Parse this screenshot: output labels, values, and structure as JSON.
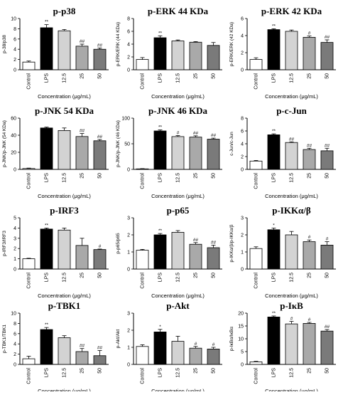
{
  "figure": {
    "xlabel": "Concentration (μg/mL)",
    "categories": [
      "Control",
      "LPS",
      "12.5",
      "25",
      "50"
    ],
    "bar_colors": [
      "#ffffff",
      "#000000",
      "#d3d3d3",
      "#a9a9a9",
      "#7a7a7a"
    ]
  },
  "chart_data": [
    {
      "type": "bar",
      "title": "p-p38",
      "ylabel": "p-38/p38",
      "ylim": [
        0,
        10
      ],
      "yticks": [
        0,
        2,
        4,
        6,
        8,
        10
      ],
      "categories": [
        "Control",
        "LPS",
        "12.5",
        "25",
        "50"
      ],
      "values": [
        1.5,
        8.2,
        7.6,
        4.6,
        4.0
      ],
      "errors": [
        0.2,
        0.6,
        0.25,
        0.4,
        0.25
      ],
      "annotations": [
        "",
        "**",
        "",
        "##",
        "##"
      ]
    },
    {
      "type": "bar",
      "title": "p-ERK 44 KDa",
      "ylabel": "p-ERK/ERK (44 KDa)",
      "ylim": [
        0,
        8
      ],
      "yticks": [
        0,
        2,
        4,
        6,
        8
      ],
      "categories": [
        "Control",
        "LPS",
        "12.5",
        "25",
        "50"
      ],
      "values": [
        1.6,
        5.0,
        4.5,
        4.3,
        3.8
      ],
      "errors": [
        0.3,
        0.3,
        0.15,
        0.1,
        0.45
      ],
      "annotations": [
        "",
        "**",
        "",
        "",
        ""
      ]
    },
    {
      "type": "bar",
      "title": "p-ERK 42 KDa",
      "ylabel": "p-ERK/ERK (42 KDa)",
      "ylim": [
        0,
        6
      ],
      "yticks": [
        0,
        2,
        4,
        6
      ],
      "categories": [
        "Control",
        "LPS",
        "12.5",
        "25",
        "50"
      ],
      "values": [
        1.2,
        4.7,
        4.5,
        3.8,
        3.2
      ],
      "errors": [
        0.2,
        0.1,
        0.15,
        0.15,
        0.3
      ],
      "annotations": [
        "",
        "**",
        "",
        "#",
        "##"
      ]
    },
    {
      "type": "bar",
      "title": "p-JNK 54 KDa",
      "ylabel": "p-JNK/p-JNK (54 KDa)",
      "ylim": [
        0,
        60
      ],
      "yticks": [
        0,
        20,
        40,
        60
      ],
      "categories": [
        "Control",
        "LPS",
        "12.5",
        "25",
        "50"
      ],
      "values": [
        1.0,
        48.5,
        45.5,
        38.5,
        33.5
      ],
      "errors": [
        0.5,
        1.0,
        3.0,
        3.5,
        1.5
      ],
      "annotations": [
        "",
        "",
        "",
        "##",
        "##"
      ]
    },
    {
      "type": "bar",
      "title": "p-JNK 46 KDa",
      "ylabel": "p-JNK/p-JNK (46 KDa)",
      "ylim": [
        0,
        100
      ],
      "yticks": [
        0,
        50,
        100
      ],
      "categories": [
        "Control",
        "LPS",
        "12.5",
        "25",
        "50"
      ],
      "values": [
        1.0,
        75.0,
        64.0,
        63.0,
        59.0
      ],
      "errors": [
        0.5,
        2.0,
        2.0,
        2.5,
        2.0
      ],
      "annotations": [
        "",
        "**",
        "#",
        "##",
        "##"
      ]
    },
    {
      "type": "bar",
      "title": "p-c-Jun",
      "ylabel": "c-Jun/c-Jun",
      "ylim": [
        0,
        8
      ],
      "yticks": [
        0,
        2,
        4,
        6,
        8
      ],
      "categories": [
        "Control",
        "LPS",
        "12.5",
        "25",
        "50"
      ],
      "values": [
        1.3,
        5.4,
        4.2,
        3.1,
        2.9
      ],
      "errors": [
        0.1,
        0.15,
        0.1,
        0.2,
        0.4
      ],
      "annotations": [
        "",
        "**",
        "##",
        "##",
        "##"
      ]
    },
    {
      "type": "bar",
      "title": "p-IRF3",
      "ylabel": "p-IRF3/IRF3",
      "ylim": [
        0,
        5
      ],
      "yticks": [
        0,
        1,
        2,
        3,
        4,
        5
      ],
      "categories": [
        "Control",
        "LPS",
        "12.5",
        "25",
        "50"
      ],
      "values": [
        1.0,
        3.9,
        3.8,
        2.3,
        1.9
      ],
      "errors": [
        0.05,
        0.1,
        0.2,
        0.7,
        0.05
      ],
      "annotations": [
        "",
        "**",
        "",
        "",
        "#"
      ]
    },
    {
      "type": "bar",
      "title": "p-p65",
      "ylabel": "p-p65/p65",
      "ylim": [
        0,
        3
      ],
      "yticks": [
        0,
        1,
        2,
        3
      ],
      "categories": [
        "Control",
        "LPS",
        "12.5",
        "25",
        "50"
      ],
      "values": [
        1.1,
        2.0,
        2.15,
        1.45,
        1.25
      ],
      "errors": [
        0.05,
        0.08,
        0.1,
        0.1,
        0.15
      ],
      "annotations": [
        "",
        "**",
        "",
        "##",
        "##"
      ]
    },
    {
      "type": "bar",
      "title": "p-IKKα/β",
      "ylabel": "p-IKKα/β/p-IKKα/β",
      "ylim": [
        0,
        3
      ],
      "yticks": [
        0,
        1,
        2,
        3
      ],
      "categories": [
        "Control",
        "LPS",
        "12.5",
        "25",
        "50"
      ],
      "values": [
        1.2,
        2.3,
        2.0,
        1.6,
        1.4
      ],
      "errors": [
        0.1,
        0.1,
        0.2,
        0.1,
        0.2
      ],
      "annotations": [
        "",
        "*",
        "",
        "#",
        "#"
      ]
    },
    {
      "type": "bar",
      "title": "p-TBK1",
      "ylabel": "p-TBK1/TBK1",
      "ylim": [
        0,
        10
      ],
      "yticks": [
        0,
        2,
        4,
        6,
        8,
        10
      ],
      "categories": [
        "Control",
        "LPS",
        "12.5",
        "25",
        "50"
      ],
      "values": [
        1.1,
        6.8,
        5.2,
        2.5,
        1.7
      ],
      "errors": [
        0.5,
        0.4,
        0.4,
        0.6,
        1.0
      ],
      "annotations": [
        "",
        "**",
        "",
        "##",
        "##"
      ]
    },
    {
      "type": "bar",
      "title": "p-Akt",
      "ylabel": "p-Akt/Akt",
      "ylim": [
        0,
        3
      ],
      "yticks": [
        0,
        1,
        2,
        3
      ],
      "categories": [
        "Control",
        "LPS",
        "12.5",
        "25",
        "50"
      ],
      "values": [
        1.05,
        1.9,
        1.35,
        0.95,
        0.9
      ],
      "errors": [
        0.1,
        0.15,
        0.3,
        0.1,
        0.1
      ],
      "annotations": [
        "",
        "*",
        "",
        "#",
        "#"
      ]
    },
    {
      "type": "bar",
      "title": "p-IκB",
      "ylabel": "p-IκBα/IκBα",
      "ylim": [
        0,
        20
      ],
      "yticks": [
        0,
        5,
        10,
        15,
        20
      ],
      "categories": [
        "Control",
        "LPS",
        "12.5",
        "25",
        "50"
      ],
      "values": [
        1.0,
        18.5,
        15.8,
        16.0,
        13.0
      ],
      "errors": [
        0.2,
        0.4,
        1.0,
        0.4,
        0.6
      ],
      "annotations": [
        "",
        "**",
        "#",
        "#",
        "##"
      ]
    }
  ]
}
